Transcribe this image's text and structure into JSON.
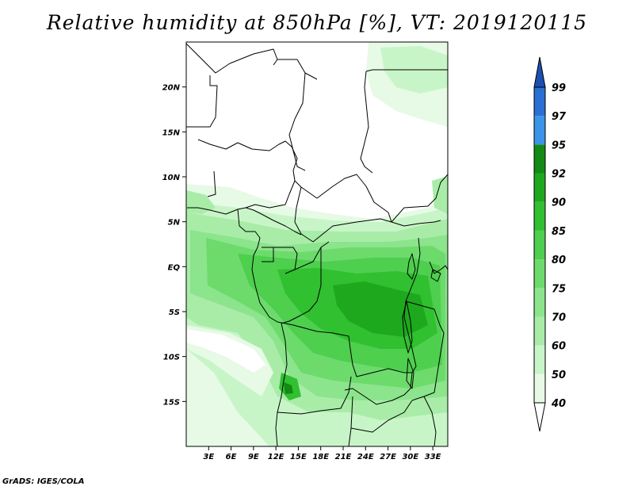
{
  "title": "Relative humidity at 850hPa [%], VT: 2019120115",
  "credit": "GrADS: IGES/COLA",
  "map": {
    "variable": "Relative humidity at 850hPa",
    "unit": "%",
    "valid_time": "2019120115",
    "lon_range": [
      0,
      35
    ],
    "lat_range": [
      -20,
      25
    ],
    "lon_ticks": [
      {
        "value": 3,
        "label": "3E"
      },
      {
        "value": 6,
        "label": "6E"
      },
      {
        "value": 9,
        "label": "9E"
      },
      {
        "value": 12,
        "label": "12E"
      },
      {
        "value": 15,
        "label": "15E"
      },
      {
        "value": 18,
        "label": "18E"
      },
      {
        "value": 21,
        "label": "21E"
      },
      {
        "value": 24,
        "label": "24E"
      },
      {
        "value": 27,
        "label": "27E"
      },
      {
        "value": 30,
        "label": "30E"
      },
      {
        "value": 33,
        "label": "33E"
      }
    ],
    "lat_ticks": [
      {
        "value": 20,
        "label": "20N"
      },
      {
        "value": 15,
        "label": "15N"
      },
      {
        "value": 10,
        "label": "10N"
      },
      {
        "value": 5,
        "label": "5N"
      },
      {
        "value": 0,
        "label": "EQ"
      },
      {
        "value": -5,
        "label": "5S"
      },
      {
        "value": -10,
        "label": "10S"
      },
      {
        "value": -15,
        "label": "15S"
      }
    ]
  },
  "colorbar": {
    "levels": [
      "40",
      "50",
      "60",
      "70",
      "75",
      "80",
      "85",
      "90",
      "92",
      "95",
      "97",
      "99"
    ],
    "colors": [
      "#ffffff",
      "#e6fae6",
      "#c8f5c8",
      "#a8eca8",
      "#8ce48c",
      "#6cdb6c",
      "#4ecf4e",
      "#30c030",
      "#1ea81e",
      "#138a13",
      "#3c94e8",
      "#2a6fd4",
      "#1c4fb0"
    ]
  }
}
